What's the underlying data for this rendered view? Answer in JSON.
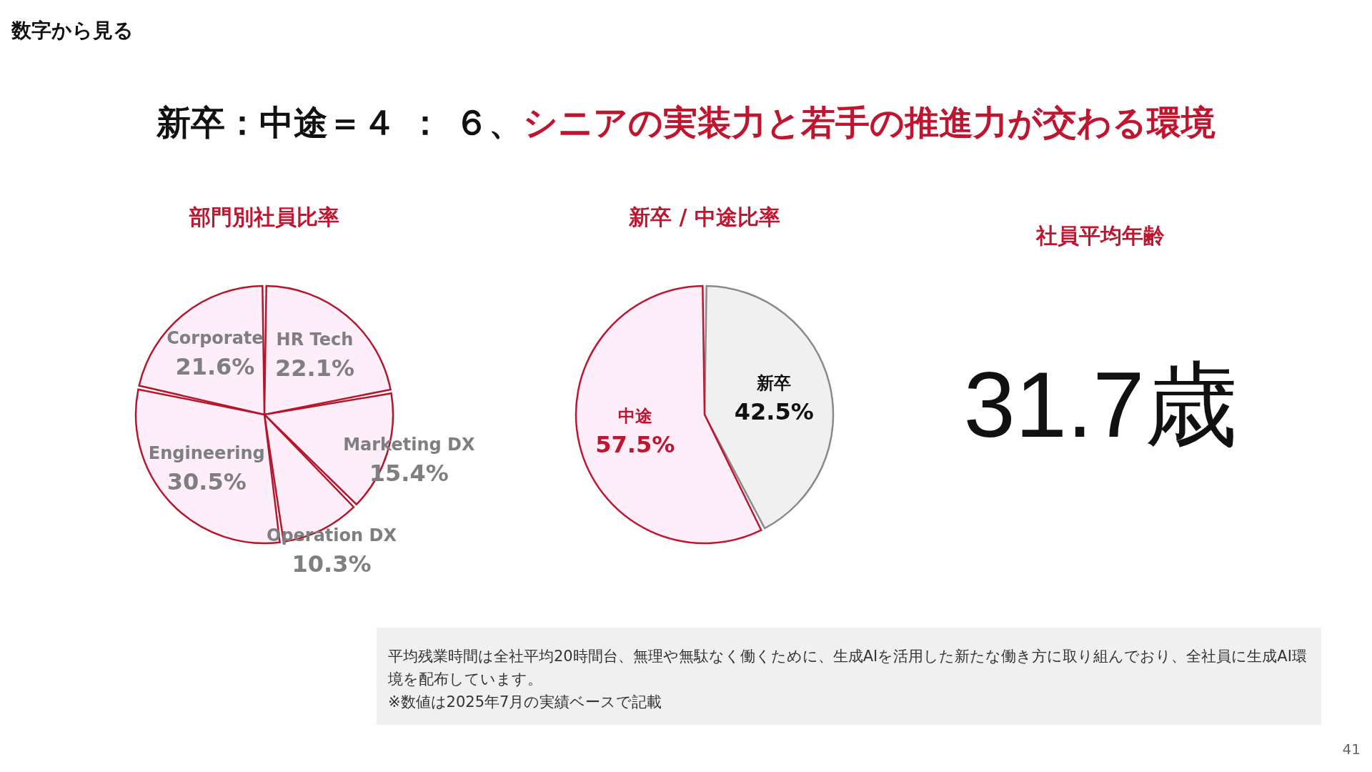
{
  "chart_data": [
    {
      "type": "pie",
      "title": "部門別社員比率",
      "categories": [
        "HR Tech",
        "Marketing DX",
        "Operation DX",
        "Engineering",
        "Corporate"
      ],
      "values": [
        22.1,
        15.4,
        10.3,
        30.5,
        21.6
      ],
      "colors": [
        "#fdeefa",
        "#fdeefa",
        "#fdeefa",
        "#fdeefa",
        "#fdeefa"
      ],
      "value_labels": [
        "22.1%",
        "15.4%",
        "10.3%",
        "30.5%",
        "21.6%"
      ],
      "annotations": [
        "数字から見る",
        "新卒：中途＝４ ： ６、",
        "シニアの実装力と若手の推進力が交わる環境",
        "41"
      ]
    },
    {
      "type": "pie",
      "title": "新卒 / 中途比率",
      "categories": [
        "新卒",
        "中途"
      ],
      "values": [
        42.5,
        57.5
      ],
      "colors": [
        "#f0f0f0",
        "#fdeefa"
      ],
      "value_labels": [
        "42.5%",
        "57.5%"
      ]
    },
    {
      "type": "other",
      "title": "社員平均年齢",
      "annotations": [
        "31.7歳",
        "平均残業時間は全社平均20時間台、無理や無駄なく働くために、生成AIを活用した新たな働き方に取り組んでおり、全社員に生成AI環境を配布しています。",
        "※数値は2025年7月の実績ベースで記載"
      ]
    }
  ]
}
